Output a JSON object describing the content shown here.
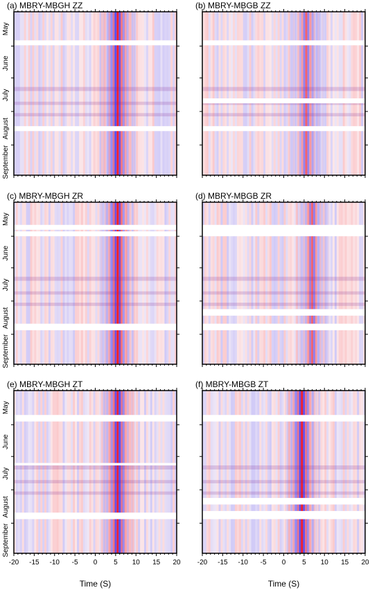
{
  "chart_data": [
    {
      "type": "heatmap",
      "title": "(a) MBRY-MBGH ZZ",
      "xlabel": "",
      "ylabel": "",
      "xlim": [
        -20,
        20
      ],
      "x_ticks": [
        "-20",
        "-15",
        "-10",
        "-5",
        "0",
        "5",
        "10",
        "15",
        "20"
      ],
      "y_tick_labels": [
        "May",
        "June",
        "July",
        "August",
        "September"
      ],
      "signal_lag_seconds": 5.5,
      "colors": {
        "positive": "#ff0000",
        "negative": "#0000ff",
        "zero": "#ffffff"
      }
    },
    {
      "type": "heatmap",
      "title": "(b) MBRY-MBGB ZZ",
      "xlabel": "",
      "ylabel": "",
      "xlim": [
        -20,
        20
      ],
      "x_ticks": [
        "-20",
        "-15",
        "-10",
        "-5",
        "0",
        "5",
        "10",
        "15",
        "20"
      ],
      "y_tick_labels": [],
      "signal_lag_seconds": 5.5,
      "colors": {
        "positive": "#ff0000",
        "negative": "#0000ff",
        "zero": "#ffffff"
      }
    },
    {
      "type": "heatmap",
      "title": "(c) MBRY-MBGH ZR",
      "xlabel": "",
      "ylabel": "",
      "xlim": [
        -20,
        20
      ],
      "x_ticks": [
        "-20",
        "-15",
        "-10",
        "-5",
        "0",
        "5",
        "10",
        "15",
        "20"
      ],
      "y_tick_labels": [
        "May",
        "June",
        "July",
        "August",
        "September"
      ],
      "signal_lag_seconds": 5.5,
      "colors": {
        "positive": "#ff0000",
        "negative": "#0000ff",
        "zero": "#ffffff"
      }
    },
    {
      "type": "heatmap",
      "title": "(d) MBRY-MBGB ZR",
      "xlabel": "",
      "ylabel": "",
      "xlim": [
        -20,
        20
      ],
      "x_ticks": [
        "-20",
        "-15",
        "-10",
        "-5",
        "0",
        "5",
        "10",
        "15",
        "20"
      ],
      "y_tick_labels": [],
      "signal_lag_seconds": 7,
      "colors": {
        "positive": "#ff0000",
        "negative": "#0000ff",
        "zero": "#ffffff"
      }
    },
    {
      "type": "heatmap",
      "title": "(e) MBRY-MBGH ZT",
      "xlabel": "Time (S)",
      "ylabel": "",
      "xlim": [
        -20,
        20
      ],
      "x_ticks": [
        "-20",
        "-15",
        "-10",
        "-5",
        "0",
        "5",
        "10",
        "15",
        "20"
      ],
      "y_tick_labels": [
        "May",
        "June",
        "July",
        "August",
        "September"
      ],
      "signal_lag_seconds": 5.5,
      "colors": {
        "positive": "#ff0000",
        "negative": "#0000ff",
        "zero": "#ffffff"
      }
    },
    {
      "type": "heatmap",
      "title": "(f) MBRY-MBGB ZT",
      "xlabel": "Time (S)",
      "ylabel": "",
      "xlim": [
        -20,
        20
      ],
      "x_ticks": [
        "-20",
        "-15",
        "-10",
        "-5",
        "0",
        "5",
        "10",
        "15",
        "20"
      ],
      "y_tick_labels": [],
      "signal_lag_seconds": 4.5,
      "colors": {
        "positive": "#ff0000",
        "negative": "#0000ff",
        "zero": "#ffffff"
      }
    }
  ]
}
